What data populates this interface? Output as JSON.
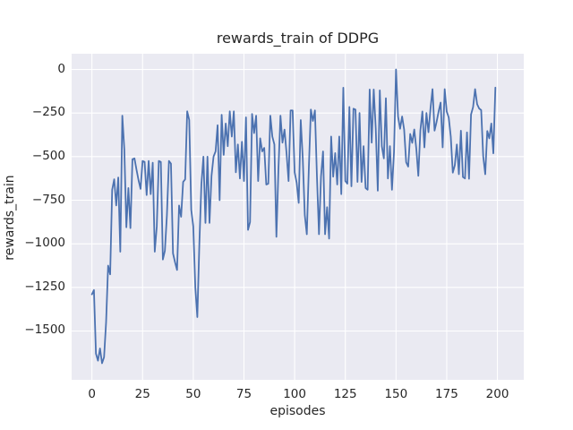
{
  "chart_data": {
    "type": "line",
    "title": "rewards_train of DDPG",
    "xlabel": "episodes",
    "ylabel": "rewards_train",
    "x_ticks": [
      0,
      25,
      50,
      75,
      100,
      125,
      150,
      175,
      200
    ],
    "x_tick_labels": [
      "0",
      "25",
      "50",
      "75",
      "100",
      "125",
      "150",
      "175",
      "200"
    ],
    "y_ticks": [
      0,
      -250,
      -500,
      -750,
      -1000,
      -1250,
      -1500
    ],
    "y_tick_labels": [
      "0",
      "−250",
      "−500",
      "−750",
      "−1000",
      "−1250",
      "−1500"
    ],
    "xlim": [
      -10,
      213
    ],
    "ylim": [
      -1780,
      90
    ],
    "grid": true,
    "legend": false,
    "style": {
      "line_color": "#4c72b0",
      "plot_bg": "#eaeaf2",
      "fig_bg": "#ffffff",
      "grid_color": "#ffffff",
      "text_color": "#262626"
    },
    "series": [
      {
        "name": "rewards_train",
        "x_start": 0,
        "x_step": 1,
        "values": [
          -1290,
          -1265,
          -1630,
          -1670,
          -1600,
          -1685,
          -1650,
          -1450,
          -1125,
          -1175,
          -690,
          -630,
          -780,
          -620,
          -1045,
          -265,
          -460,
          -905,
          -680,
          -910,
          -515,
          -510,
          -575,
          -635,
          -685,
          -525,
          -530,
          -720,
          -525,
          -715,
          -535,
          -1045,
          -900,
          -525,
          -530,
          -1090,
          -1040,
          -835,
          -525,
          -540,
          -1055,
          -1105,
          -1150,
          -780,
          -845,
          -645,
          -630,
          -240,
          -290,
          -805,
          -900,
          -1250,
          -1420,
          -1000,
          -660,
          -500,
          -880,
          -500,
          -880,
          -610,
          -500,
          -470,
          -320,
          -750,
          -260,
          -490,
          -310,
          -440,
          -240,
          -385,
          -240,
          -590,
          -430,
          -625,
          -415,
          -640,
          -275,
          -920,
          -875,
          -255,
          -365,
          -265,
          -640,
          -395,
          -470,
          -450,
          -660,
          -655,
          -265,
          -385,
          -430,
          -960,
          -575,
          -265,
          -420,
          -345,
          -480,
          -640,
          -235,
          -235,
          -590,
          -650,
          -765,
          -290,
          -510,
          -835,
          -945,
          -565,
          -230,
          -295,
          -235,
          -615,
          -945,
          -615,
          -470,
          -945,
          -790,
          -970,
          -385,
          -615,
          -480,
          -660,
          -385,
          -715,
          -105,
          -640,
          -655,
          -215,
          -670,
          -225,
          -230,
          -645,
          -250,
          -645,
          -440,
          -680,
          -690,
          -115,
          -420,
          -115,
          -340,
          -695,
          -120,
          -440,
          -510,
          -165,
          -625,
          -440,
          -690,
          -475,
          0,
          -270,
          -340,
          -270,
          -345,
          -532,
          -557,
          -370,
          -421,
          -344,
          -455,
          -610,
          -351,
          -241,
          -447,
          -250,
          -360,
          -224,
          -113,
          -351,
          -301,
          -241,
          -190,
          -447,
          -113,
          -241,
          -276,
          -385,
          -592,
          -549,
          -430,
          -601,
          -351,
          -617,
          -625,
          -361,
          -627,
          -258,
          -216,
          -113,
          -199,
          -224,
          -233,
          -498,
          -601,
          -353,
          -395,
          -310,
          -481,
          -104
        ]
      }
    ]
  }
}
